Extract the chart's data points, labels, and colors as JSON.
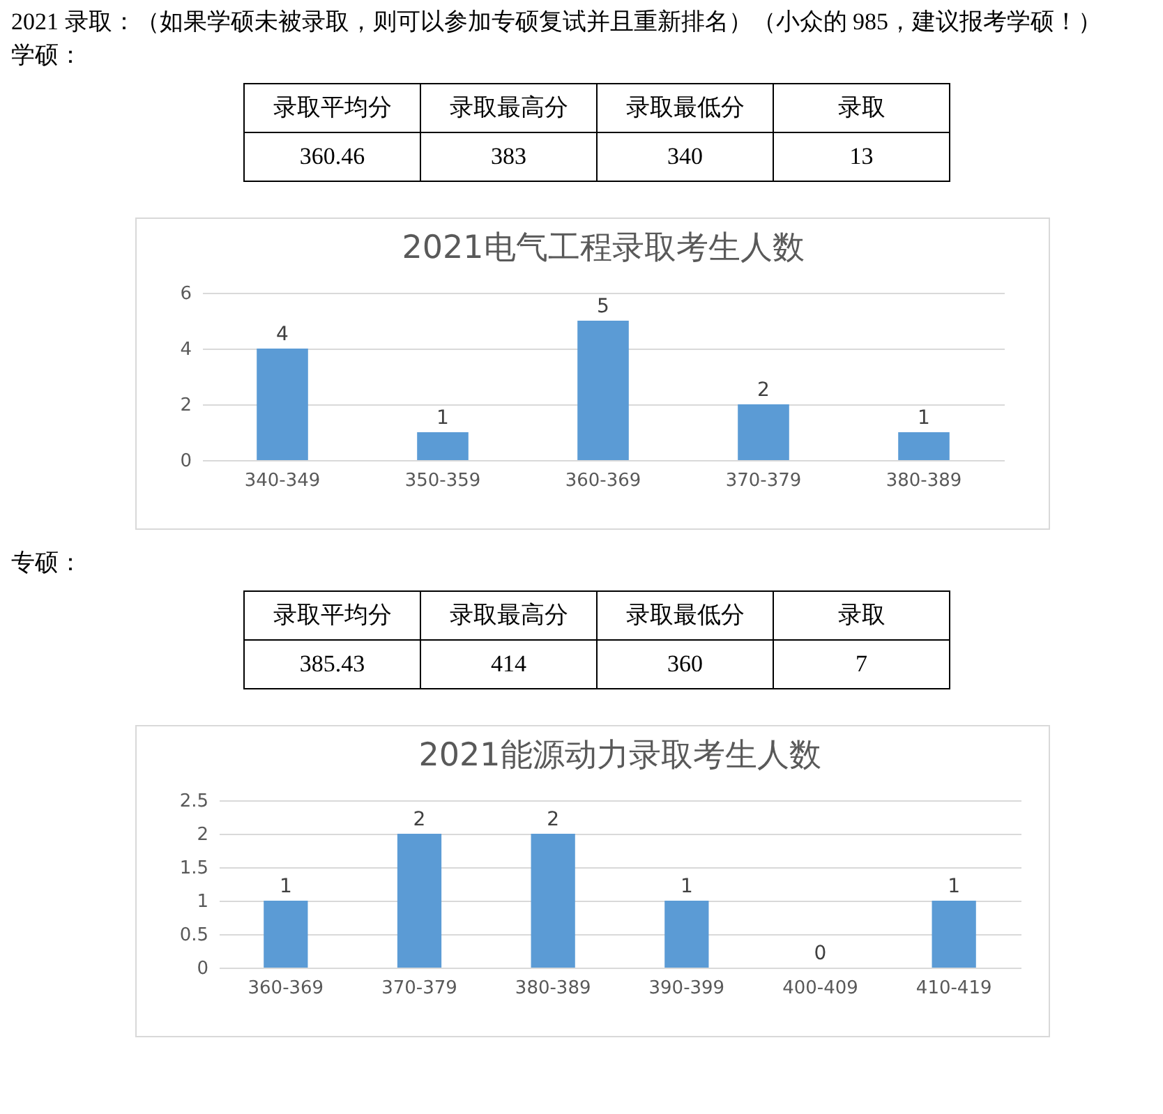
{
  "chart_data": [
    {
      "type": "other",
      "title": "2021 录取：（如果学硕未被录取，则可以参加专硕复试并且重新排名）（小众的 985，建议报考学硕！）",
      "subtitle": "学硕：",
      "categories": [
        "录取平均分",
        "录取最高分",
        "录取最低分",
        "录取"
      ],
      "values": [
        360.46,
        383,
        340,
        13
      ],
      "data_labels": true
    },
    {
      "type": "bar",
      "title": "2021电气工程录取考生人数",
      "categories": [
        "340-349",
        "350-359",
        "360-369",
        "370-379",
        "380-389"
      ],
      "values": [
        4,
        1,
        5,
        2,
        1
      ],
      "color": "#5b9bd5",
      "ylim": [
        0,
        6
      ],
      "yticks": [
        0,
        2,
        4,
        6
      ],
      "grid": "y",
      "data_labels": true
    },
    {
      "type": "other",
      "subtitle": "专硕：",
      "categories": [
        "录取平均分",
        "录取最高分",
        "录取最低分",
        "录取"
      ],
      "values": [
        385.43,
        414,
        360,
        7
      ],
      "data_labels": true
    },
    {
      "type": "bar",
      "title": "2021能源动力录取考生人数",
      "categories": [
        "360-369",
        "370-379",
        "380-389",
        "390-399",
        "400-409",
        "410-419"
      ],
      "values": [
        1,
        2,
        2,
        1,
        0,
        1
      ],
      "color": "#5b9bd5",
      "ylim": [
        0,
        2.5
      ],
      "yticks": [
        0,
        0.5,
        1,
        1.5,
        2,
        2.5
      ],
      "grid": "y",
      "data_labels": true
    }
  ]
}
